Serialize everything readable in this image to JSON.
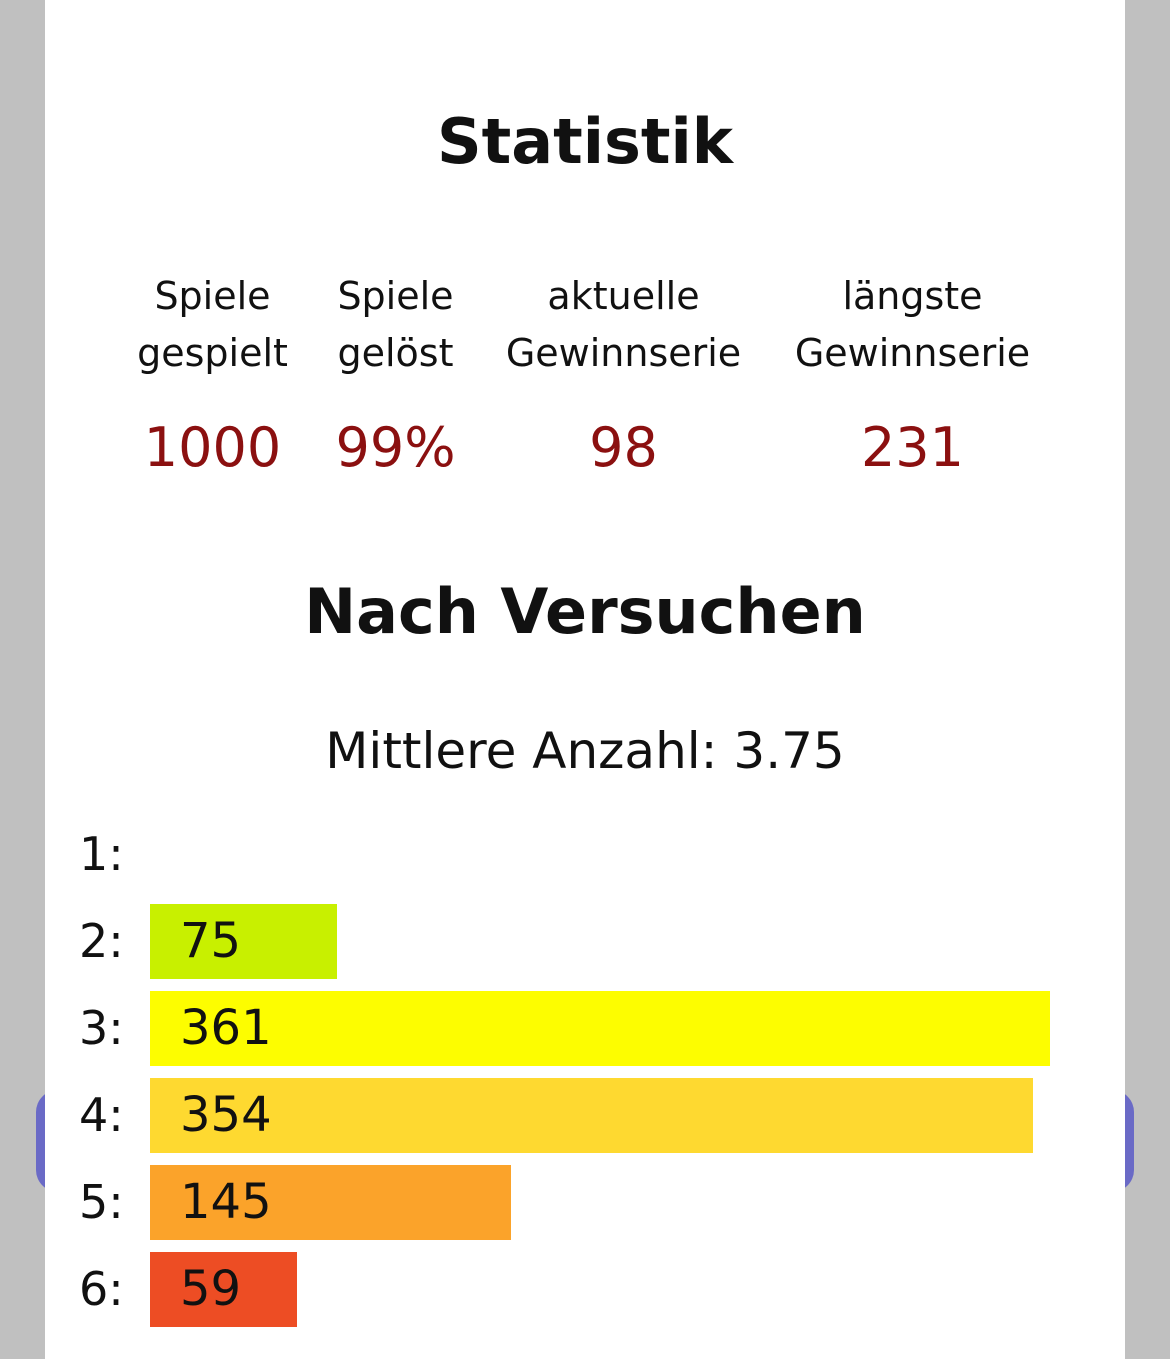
{
  "statistics": {
    "title": "Statistik",
    "items": [
      {
        "label_line1": "Spiele",
        "label_line2": "gespielt",
        "value": "1000"
      },
      {
        "label_line1": "Spiele",
        "label_line2": "gelöst",
        "value": "99%"
      },
      {
        "label_line1": "aktuelle",
        "label_line2": "Gewinnserie",
        "value": "98"
      },
      {
        "label_line1": "längste",
        "label_line2": "Gewinnserie",
        "value": "231"
      }
    ]
  },
  "distribution": {
    "title": "Nach Versuchen",
    "average_text": "Mittlere Anzahl: 3.75",
    "rows": [
      {
        "label": "1:",
        "count": "",
        "value": 0,
        "color": ""
      },
      {
        "label": "2:",
        "count": "75",
        "value": 75,
        "color": "#c8f000"
      },
      {
        "label": "3:",
        "count": "361",
        "value": 361,
        "color": "#fdfd00"
      },
      {
        "label": "4:",
        "count": "354",
        "value": 354,
        "color": "#fed930"
      },
      {
        "label": "5:",
        "count": "145",
        "value": 145,
        "color": "#fba32a"
      },
      {
        "label": "6:",
        "count": "59",
        "value": 59,
        "color": "#ed4d24"
      }
    ]
  },
  "colors": {
    "stat_value": "#8b1010",
    "background": "#c0c0c0",
    "behind_button": "#6a6ac6"
  }
}
